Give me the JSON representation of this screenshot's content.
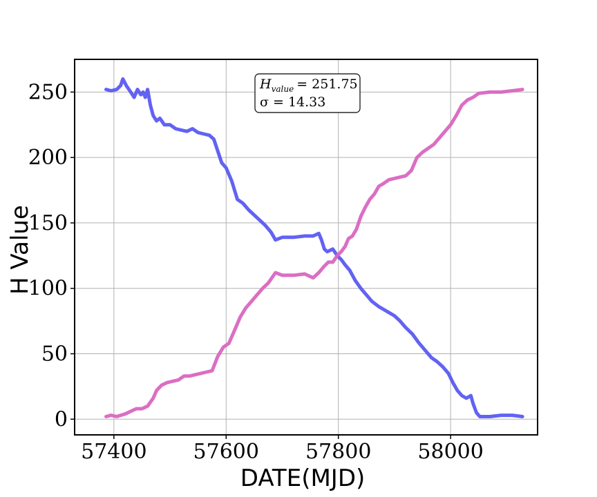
{
  "chart_data": {
    "type": "line",
    "xlabel": "DATE(MJD)",
    "ylabel": "H Value",
    "xlim": [
      57330,
      58155
    ],
    "ylim": [
      -12,
      275
    ],
    "grid": true,
    "xticks": [
      57400,
      57600,
      57800,
      58000
    ],
    "yticks": [
      0,
      50,
      100,
      150,
      200,
      250
    ],
    "annotation": {
      "h_main": "H",
      "h_sub": "value",
      "h_value": "= 251.75",
      "sigma_text": "σ = 14.33"
    },
    "colors": {
      "blue": "#5a5af2",
      "pink": "#d966c0"
    },
    "series": [
      {
        "color": "#5a5af2",
        "x": [
          57386,
          57395,
          57405,
          57412,
          57416,
          57422,
          57430,
          57436,
          57442,
          57448,
          57452,
          57456,
          57460,
          57465,
          57470,
          57476,
          57482,
          57490,
          57500,
          57510,
          57520,
          57530,
          57540,
          57550,
          57560,
          57570,
          57578,
          57585,
          57592,
          57600,
          57610,
          57620,
          57630,
          57640,
          57650,
          57660,
          57670,
          57680,
          57688,
          57700,
          57720,
          57740,
          57755,
          57765,
          57770,
          57775,
          57780,
          57790,
          57798,
          57805,
          57812,
          57820,
          57830,
          57840,
          57850,
          57860,
          57872,
          57880,
          57892,
          57900,
          57910,
          57920,
          57932,
          57944,
          57956,
          57966,
          57976,
          57986,
          57996,
          58004,
          58012,
          58020,
          58028,
          58036,
          58040,
          58046,
          58052,
          58070,
          58090,
          58110,
          58128
        ],
        "y": [
          252,
          251,
          252,
          255,
          260,
          255,
          250,
          246,
          252,
          248,
          250,
          246,
          252,
          240,
          232,
          228,
          230,
          225,
          225,
          222,
          221,
          220,
          222,
          219,
          218,
          217,
          214,
          205,
          196,
          192,
          182,
          168,
          165,
          160,
          156,
          152,
          148,
          143,
          137,
          139,
          139,
          140,
          140,
          142,
          137,
          130,
          128,
          130,
          125,
          122,
          118,
          114,
          106,
          100,
          95,
          90,
          86,
          84,
          81,
          79,
          75,
          70,
          65,
          58,
          52,
          47,
          44,
          40,
          35,
          28,
          22,
          18,
          16,
          18,
          12,
          5,
          2,
          2,
          3,
          3,
          2
        ]
      },
      {
        "color": "#d966c0",
        "x": [
          57386,
          57395,
          57405,
          57412,
          57420,
          57430,
          57440,
          57450,
          57460,
          57470,
          57476,
          57485,
          57495,
          57505,
          57515,
          57525,
          57535,
          57545,
          57555,
          57565,
          57575,
          57585,
          57595,
          57605,
          57615,
          57625,
          57635,
          57645,
          57655,
          57665,
          57675,
          57688,
          57700,
          57720,
          57740,
          57755,
          57765,
          57775,
          57782,
          57790,
          57798,
          57805,
          57812,
          57818,
          57825,
          57832,
          57840,
          57848,
          57856,
          57864,
          57872,
          57880,
          57890,
          57900,
          57910,
          57920,
          57930,
          57940,
          57950,
          57960,
          57970,
          57980,
          57990,
          58000,
          58010,
          58020,
          58030,
          58040,
          58050,
          58070,
          58090,
          58110,
          58128
        ],
        "y": [
          2,
          3,
          2,
          3,
          4,
          6,
          8,
          8,
          10,
          16,
          22,
          26,
          28,
          29,
          30,
          33,
          33,
          34,
          35,
          36,
          37,
          48,
          55,
          58,
          68,
          78,
          85,
          90,
          95,
          100,
          104,
          112,
          110,
          110,
          111,
          108,
          112,
          117,
          120,
          120,
          125,
          128,
          132,
          138,
          140,
          145,
          155,
          162,
          168,
          172,
          178,
          180,
          183,
          184,
          185,
          186,
          190,
          200,
          204,
          207,
          210,
          215,
          220,
          225,
          232,
          240,
          244,
          246,
          249,
          250,
          250,
          251,
          252
        ]
      }
    ]
  }
}
